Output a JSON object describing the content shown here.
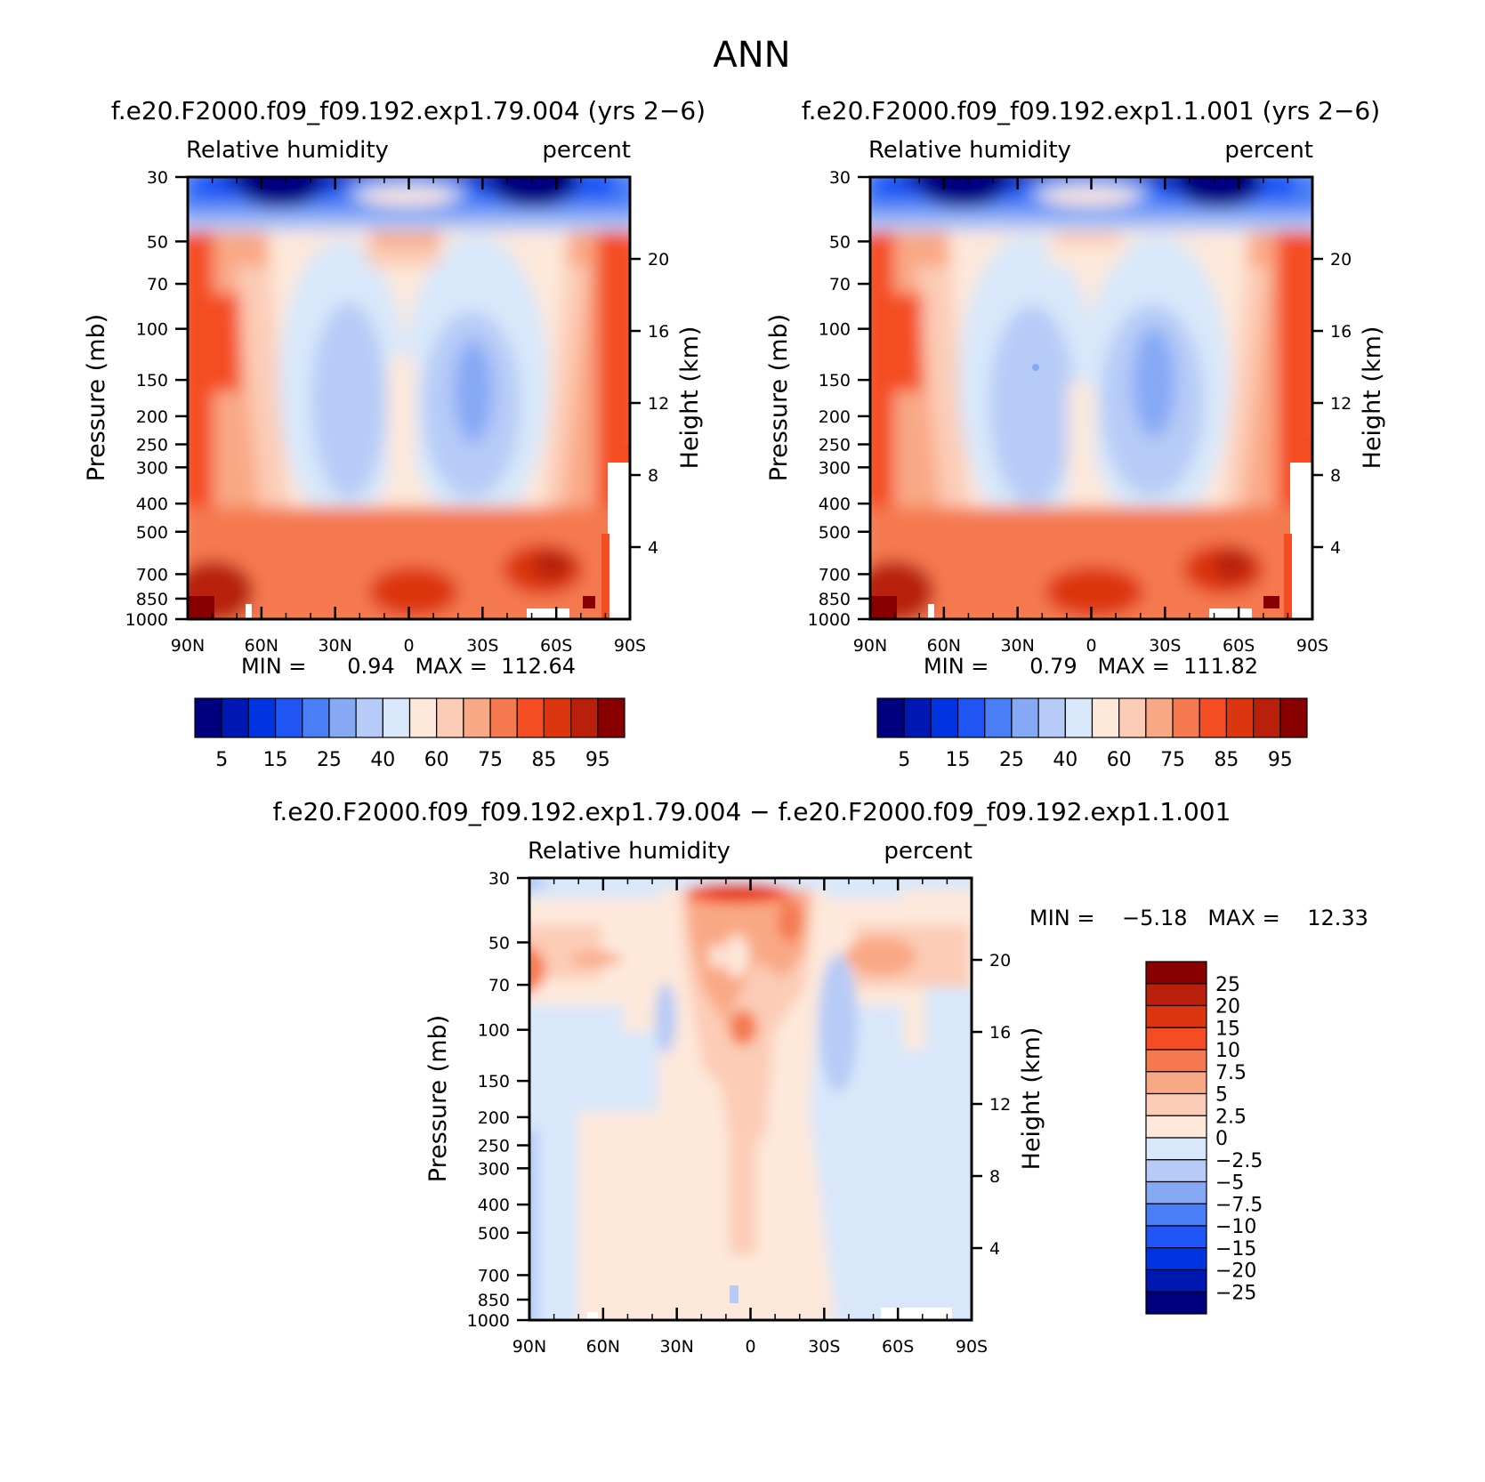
{
  "figure_title": "ANN",
  "colorbar_abs": {
    "colors": [
      "#00007f",
      "#0018b2",
      "#0034e0",
      "#1f55f5",
      "#4a7ef6",
      "#86a9f5",
      "#b6cbf7",
      "#d8e8fa",
      "#fde8da",
      "#fcccb6",
      "#f9a885",
      "#f5794f",
      "#f44d23",
      "#dc3610",
      "#b8200b",
      "#880000"
    ],
    "labels": [
      "5",
      "15",
      "25",
      "40",
      "60",
      "75",
      "85",
      "95"
    ]
  },
  "colorbar_diff": {
    "colors": [
      "#880000",
      "#b8200b",
      "#dc3610",
      "#f44d23",
      "#f5794f",
      "#f9a885",
      "#fcccb6",
      "#fde8da",
      "#d8e8fa",
      "#b6cbf7",
      "#86a9f5",
      "#4a7ef6",
      "#1f55f5",
      "#0034e0",
      "#0018b2",
      "#00007f"
    ],
    "labels": [
      "25",
      "20",
      "15",
      "10",
      "7.5",
      "5",
      "2.5",
      "0",
      "−2.5",
      "−5",
      "−7.5",
      "−10",
      "−15",
      "−20",
      "−25"
    ]
  },
  "chart_data": [
    {
      "type": "heatmap",
      "title": "f.e20.F2000.f09_f09.192.exp1.79.004 (yrs 2−6)",
      "left_label": "Relative humidity",
      "right_label": "percent",
      "ylabel": "Pressure (mb)",
      "ylabel_right": "Height (km)",
      "x_ticks": [
        "90N",
        "60N",
        "30N",
        "0",
        "30S",
        "60S",
        "90S"
      ],
      "y_ticks": [
        "30",
        "50",
        "70",
        "100",
        "150",
        "200",
        "250",
        "300",
        "400",
        "500",
        "700",
        "850",
        "1000"
      ],
      "y_ticks_right": [
        "20",
        "16",
        "12",
        "8",
        "4"
      ],
      "xlim": [
        90,
        -90
      ],
      "ylim": [
        1000,
        30
      ],
      "stats_text": "MIN =      0.94   MAX =  112.64",
      "min": 0.94,
      "max": 112.64
    },
    {
      "type": "heatmap",
      "title": "f.e20.F2000.f09_f09.192.exp1.1.001 (yrs 2−6)",
      "left_label": "Relative humidity",
      "right_label": "percent",
      "ylabel": "Pressure (mb)",
      "ylabel_right": "Height (km)",
      "x_ticks": [
        "90N",
        "60N",
        "30N",
        "0",
        "30S",
        "60S",
        "90S"
      ],
      "y_ticks": [
        "30",
        "50",
        "70",
        "100",
        "150",
        "200",
        "250",
        "300",
        "400",
        "500",
        "700",
        "850",
        "1000"
      ],
      "y_ticks_right": [
        "20",
        "16",
        "12",
        "8",
        "4"
      ],
      "xlim": [
        90,
        -90
      ],
      "ylim": [
        1000,
        30
      ],
      "stats_text": "MIN =      0.79   MAX =  111.82",
      "min": 0.79,
      "max": 111.82
    },
    {
      "type": "heatmap",
      "title": "f.e20.F2000.f09_f09.192.exp1.79.004 − f.e20.F2000.f09_f09.192.exp1.1.001",
      "left_label": "Relative humidity",
      "right_label": "percent",
      "ylabel": "Pressure (mb)",
      "ylabel_right": "Height (km)",
      "x_ticks": [
        "90N",
        "60N",
        "30N",
        "0",
        "30S",
        "60S",
        "90S"
      ],
      "y_ticks": [
        "30",
        "50",
        "70",
        "100",
        "150",
        "200",
        "250",
        "300",
        "400",
        "500",
        "700",
        "850",
        "1000"
      ],
      "y_ticks_right": [
        "20",
        "16",
        "12",
        "8",
        "4"
      ],
      "xlim": [
        90,
        -90
      ],
      "ylim": [
        1000,
        30
      ],
      "stats_text": "MIN =    −5.18   MAX =    12.33",
      "min": -5.18,
      "max": 12.33
    }
  ]
}
